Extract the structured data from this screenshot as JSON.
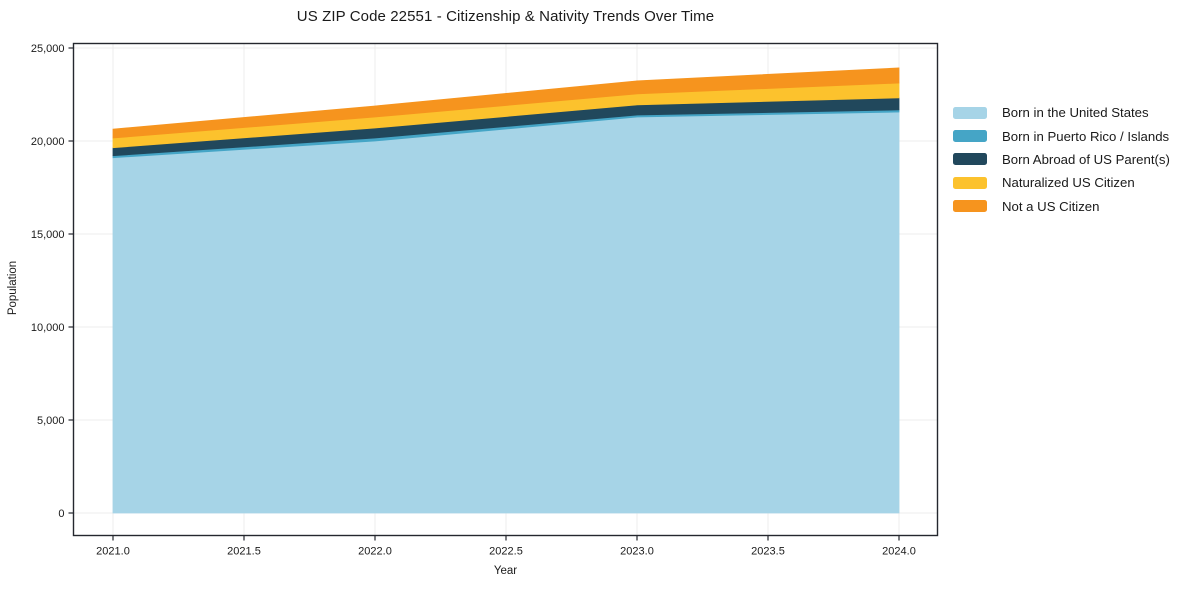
{
  "chart_data": {
    "type": "area",
    "stacked": true,
    "title": "US ZIP Code 22551 - Citizenship & Nativity Trends Over Time",
    "xlabel": "Year",
    "ylabel": "Population",
    "grid": true,
    "legend_position": "right",
    "x": [
      2021,
      2022,
      2023,
      2024
    ],
    "series": [
      {
        "name": "Born in the United States",
        "color": "#a6d4e7",
        "values": [
          19100,
          20000,
          21290,
          21560
        ]
      },
      {
        "name": "Born in Puerto Rico / Islands",
        "color": "#45a5c6",
        "values": [
          110,
          160,
          110,
          110
        ]
      },
      {
        "name": "Born Abroad of US Parent(s)",
        "color": "#21485c",
        "values": [
          430,
          540,
          540,
          650
        ]
      },
      {
        "name": "Naturalized US Citizen",
        "color": "#fcc22d",
        "values": [
          520,
          590,
          590,
          800
        ]
      },
      {
        "name": "Not a US Citizen",
        "color": "#f6941e",
        "values": [
          480,
          590,
          700,
          810
        ]
      }
    ],
    "totals": [
      20640,
      21880,
      23230,
      23930
    ],
    "x_ticks": {
      "values": [
        2021.0,
        2021.5,
        2022.0,
        2022.5,
        2023.0,
        2023.5,
        2024.0
      ],
      "labels": [
        "2021.0",
        "2021.5",
        "2022.0",
        "2022.5",
        "2023.0",
        "2023.5",
        "2024.0"
      ]
    },
    "y_ticks": {
      "values": [
        0,
        5000,
        10000,
        15000,
        20000,
        25000
      ],
      "labels": [
        "0",
        "5,000",
        "10,000",
        "15,000",
        "20,000",
        "25,000"
      ]
    },
    "xlim": [
      2020.85,
      2024.15
    ],
    "ylim": [
      -1075,
      25270
    ],
    "colors": {
      "grid": "#ececec",
      "spine": "#24272e",
      "tick_text": "#1a1a1a",
      "background": "#ffffff"
    }
  }
}
